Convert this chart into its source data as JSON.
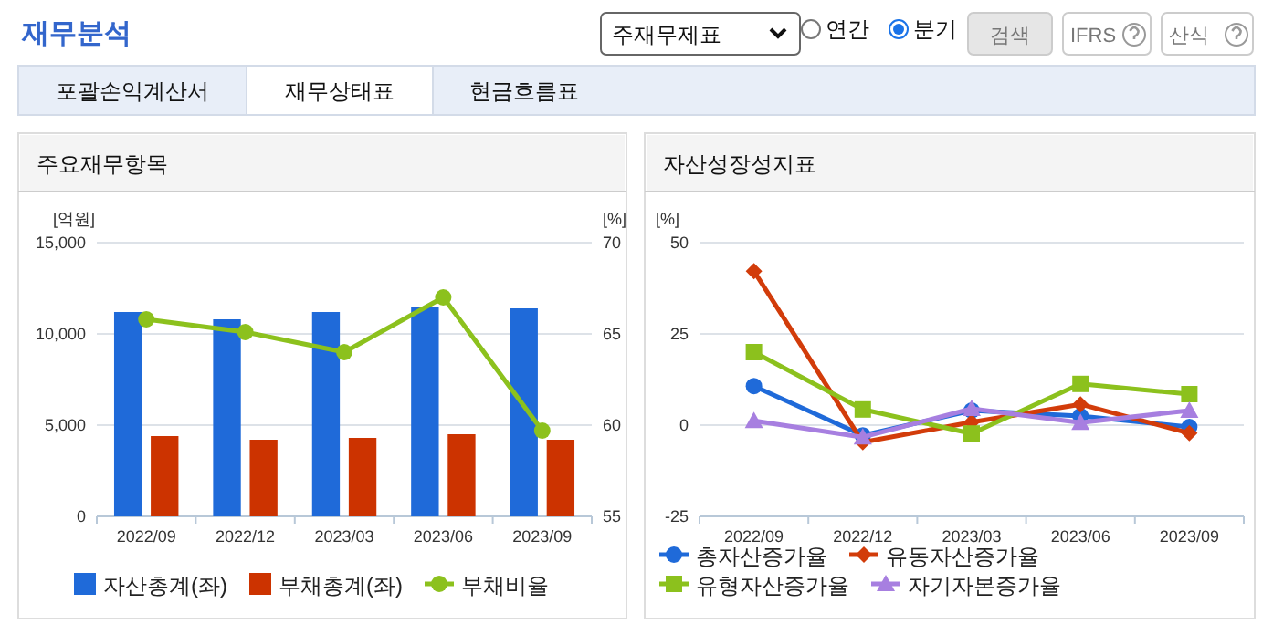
{
  "chart_data": [
    {
      "type": "other",
      "title": "재무분석",
      "annotations": [
        "주재무제표",
        "연간",
        "분기",
        "검색",
        "IFRS",
        "산식",
        "포괄손익계산서",
        "재무상태표",
        "현금흐름표"
      ]
    },
    {
      "type": "bar",
      "title": "주요재무항목",
      "ylabel": "[억원]",
      "y2label": "[%]",
      "categories": [
        "2022/09",
        "2022/12",
        "2023/03",
        "2023/06",
        "2023/09"
      ],
      "series": [
        {
          "name": "자산총계(좌)",
          "color": "#1f6ad9",
          "values": [
            11200,
            10800,
            11200,
            11500,
            11400
          ]
        },
        {
          "name": "부채총계(좌)",
          "color": "#cc3300",
          "values": [
            4400,
            4200,
            4300,
            4500,
            4200
          ]
        },
        {
          "name": "부채비율",
          "type": "line",
          "axis": "y2",
          "marker": "circle",
          "color": "#8cc11d",
          "values": [
            65.8,
            65.1,
            64.0,
            67.0,
            59.7
          ]
        }
      ],
      "ylim": [
        0,
        15000
      ],
      "yticks": [
        0,
        {
          "value": 5000,
          "label": "5,000"
        },
        {
          "value": 10000,
          "label": "10,000"
        },
        {
          "value": 15000,
          "label": "15,000"
        }
      ],
      "y2lim": [
        55,
        70
      ],
      "y2ticks": [
        55,
        60,
        65,
        70
      ],
      "grid": "y",
      "legend": "bottom"
    },
    {
      "type": "line",
      "title": "자산성장성지표",
      "ylabel": "[%]",
      "categories": [
        "2022/09",
        "2022/12",
        "2023/03",
        "2023/06",
        "2023/09"
      ],
      "series": [
        {
          "name": "총자산증가율",
          "color": "#1f6ad9",
          "marker": "circle",
          "values": [
            10.7,
            -2.8,
            4.0,
            2.5,
            -0.5
          ]
        },
        {
          "name": "유동자산증가율",
          "color": "#d23c0a",
          "marker": "diamond",
          "values": [
            42.2,
            -4.7,
            0.8,
            5.7,
            -2.2
          ]
        },
        {
          "name": "유형자산증가율",
          "color": "#8cc11d",
          "marker": "square",
          "values": [
            20.0,
            4.3,
            -2.3,
            11.3,
            8.5
          ]
        },
        {
          "name": "자기자본증가율",
          "color": "#a77fe0",
          "marker": "triangle",
          "values": [
            1.2,
            -3.3,
            4.5,
            0.7,
            4.0
          ]
        }
      ],
      "ylim": [
        -25,
        50
      ],
      "yticks": [
        -25,
        0,
        25,
        50
      ],
      "grid": "y",
      "legend": "bottom"
    }
  ]
}
